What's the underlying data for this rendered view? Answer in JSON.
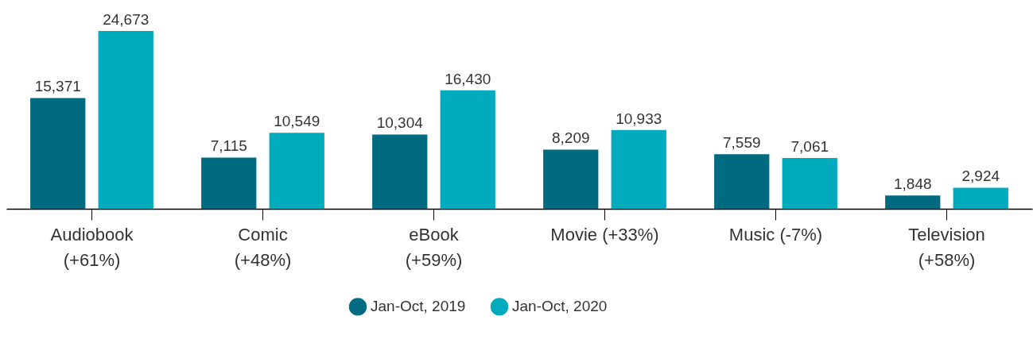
{
  "chart_data": {
    "type": "bar",
    "categories": [
      "Audiobook\n(+61%)",
      "Comic\n(+48%)",
      "eBook\n(+59%)",
      "Movie (+33%)",
      "Music (-7%)",
      "Television\n(+58%)"
    ],
    "series": [
      {
        "name": "Jan-Oct, 2019",
        "color": "#006a80",
        "values": [
          15371,
          7115,
          10304,
          8209,
          7559,
          1848
        ],
        "value_labels": [
          "15,371",
          "7,115",
          "10,304",
          "8,209",
          "7,559",
          "1,848"
        ]
      },
      {
        "name": "Jan-Oct, 2020",
        "color": "#00abbd",
        "values": [
          24673,
          10549,
          16430,
          10933,
          7061,
          2924
        ],
        "value_labels": [
          "24,673",
          "10,549",
          "16,430",
          "10,933",
          "7,061",
          "2,924"
        ]
      }
    ],
    "legend": "bottom"
  }
}
